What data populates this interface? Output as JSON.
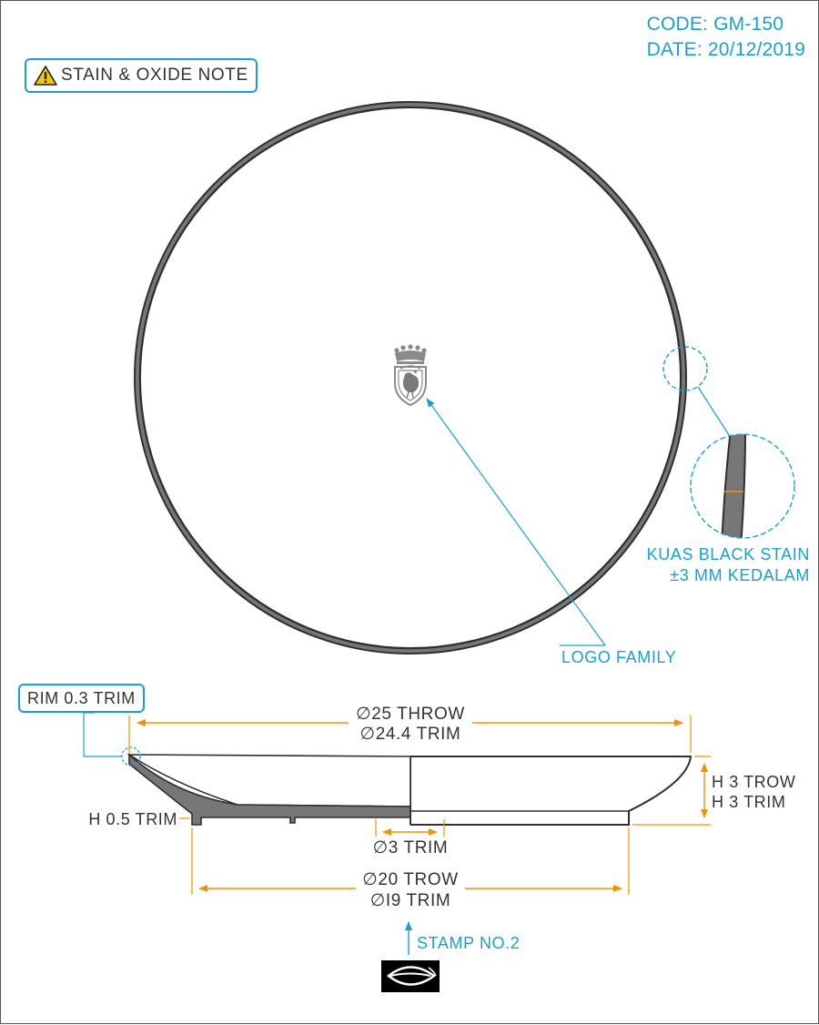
{
  "header": {
    "code": "CODE: GM-150",
    "date": "DATE: 20/12/2019"
  },
  "notes": {
    "stain_oxide": "STAIN & OXIDE NOTE",
    "rim_trim": "RIM 0.3 TRIM"
  },
  "callouts": {
    "black_stain_line1": "KUAS BLACK STAIN",
    "black_stain_line2": "±3 MM KEDALAM",
    "logo_family": "LOGO FAMILY",
    "stamp": "STAMP NO.2"
  },
  "dimensions": {
    "outer_throw": "∅25 THROW",
    "outer_trim": "∅24.4 TRIM",
    "height_throw": "H 3 TROW",
    "height_trim": "H 3 TRIM",
    "foot_height": "H 0.5 TRIM",
    "center_hole": "∅3 TRIM",
    "base_throw": "∅20 TROW",
    "base_trim": "∅I9 TRIM"
  },
  "colors": {
    "accent_blue": "#1a9fd5",
    "dimension_orange": "#f39200",
    "rim_grey": "#777777",
    "outline": "#333333"
  },
  "icons": [
    "warning-icon",
    "family-crest-logo",
    "leaf-stamp-icon"
  ]
}
